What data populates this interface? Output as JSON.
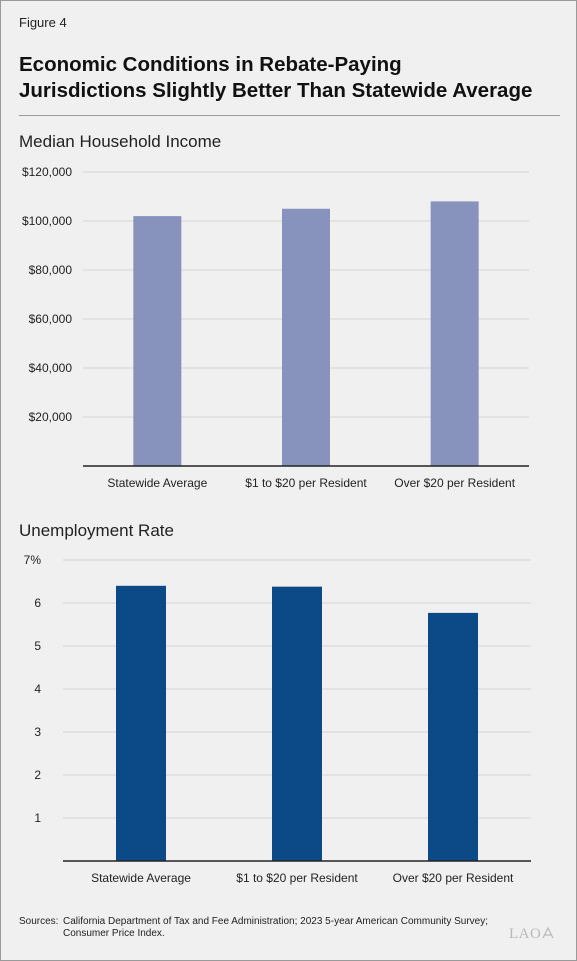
{
  "figure_label": "Figure 4",
  "title_line1": "Economic Conditions in Rebate-Paying",
  "title_line2": "Jurisdictions Slightly Better Than Statewide Average",
  "sources_label": "Sources:",
  "sources_text": "California Department of Tax and Fee Administration; 2023 5-year American Community Survey; Consumer Price Index.",
  "logo_text": "LAO",
  "logo_icon": "lao-seal-icon",
  "chart_data": [
    {
      "type": "bar",
      "title": "Median Household Income",
      "categories": [
        "Statewide Average",
        "$1 to $20 per Resident",
        "Over $20 per Resident"
      ],
      "values": [
        102000,
        105000,
        108000
      ],
      "ylim": [
        0,
        120000
      ],
      "yticks": [
        20000,
        40000,
        60000,
        80000,
        100000,
        120000
      ],
      "ytick_labels": [
        "$20,000",
        "$40,000",
        "$60,000",
        "$80,000",
        "$100,000",
        "$120,000"
      ],
      "bar_color": "#8793bd",
      "grid": true,
      "legend": "none"
    },
    {
      "type": "bar",
      "title": "Unemployment Rate",
      "categories": [
        "Statewide Average",
        "$1 to $20 per Resident",
        "Over $20 per Resident"
      ],
      "values": [
        6.4,
        6.38,
        5.77
      ],
      "ylim": [
        0,
        7
      ],
      "yticks": [
        1,
        2,
        3,
        4,
        5,
        6,
        7
      ],
      "ytick_labels": [
        "1",
        "2",
        "3",
        "4",
        "5",
        "6",
        "7%"
      ],
      "bar_color": "#0b4a87",
      "grid": true,
      "legend": "none"
    }
  ]
}
